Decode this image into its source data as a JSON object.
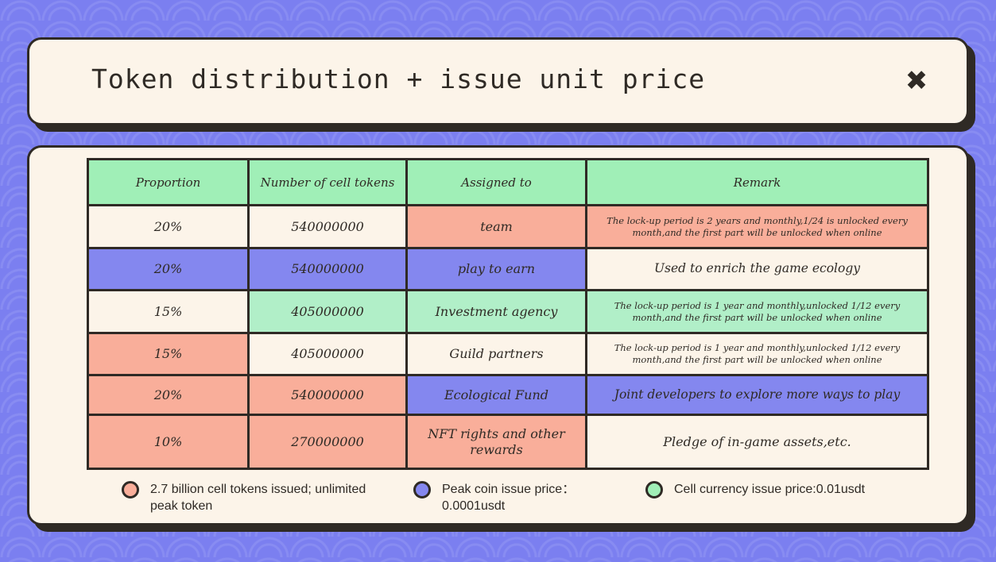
{
  "colors": {
    "background": "#7b7ff0",
    "panel": "#fcf4e9",
    "border": "#2f2a25",
    "green": "#a0efb7",
    "salmon": "#f9ae9a",
    "blue": "#8487ef"
  },
  "header": {
    "title": "Token distribution + issue unit price",
    "close_icon": "close-icon",
    "close_glyph": "✖"
  },
  "table": {
    "columns": [
      "Proportion",
      "Number of cell tokens",
      "Assigned to",
      "Remark"
    ],
    "rows": [
      {
        "proportion": "20%",
        "tokens": "540000000",
        "assigned": "team",
        "remark": "The lock-up period is 2 years and monthly,1/24 is unlocked every month,and the first part will be unlocked when online"
      },
      {
        "proportion": "20%",
        "tokens": "540000000",
        "assigned": "play to earn",
        "remark": "Used to enrich the game ecology"
      },
      {
        "proportion": "15%",
        "tokens": "405000000",
        "assigned": "Investment agency",
        "remark": "The lock-up period is 1 year and monthly,unlocked 1/12 every month,and the first part will be unlocked when online"
      },
      {
        "proportion": "15%",
        "tokens": "405000000",
        "assigned": "Guild partners",
        "remark": "The lock-up period is 1 year and monthly,unlocked 1/12 every month,and the first part will be unlocked when online"
      },
      {
        "proportion": "20%",
        "tokens": "540000000",
        "assigned": "Ecological Fund",
        "remark": "Joint developers to explore more ways to play"
      },
      {
        "proportion": "10%",
        "tokens": "270000000",
        "assigned": "NFT rights and other rewards",
        "remark": "Pledge of in-game assets,etc."
      }
    ]
  },
  "legend": [
    {
      "color": "#f9ae9a",
      "text": "2.7 billion cell tokens issued; unlimited peak token"
    },
    {
      "color": "#8487ef",
      "text": "Peak coin issue price：0.0001usdt"
    },
    {
      "color": "#a0efb7",
      "text": "Cell currency issue price:0.01usdt"
    }
  ]
}
